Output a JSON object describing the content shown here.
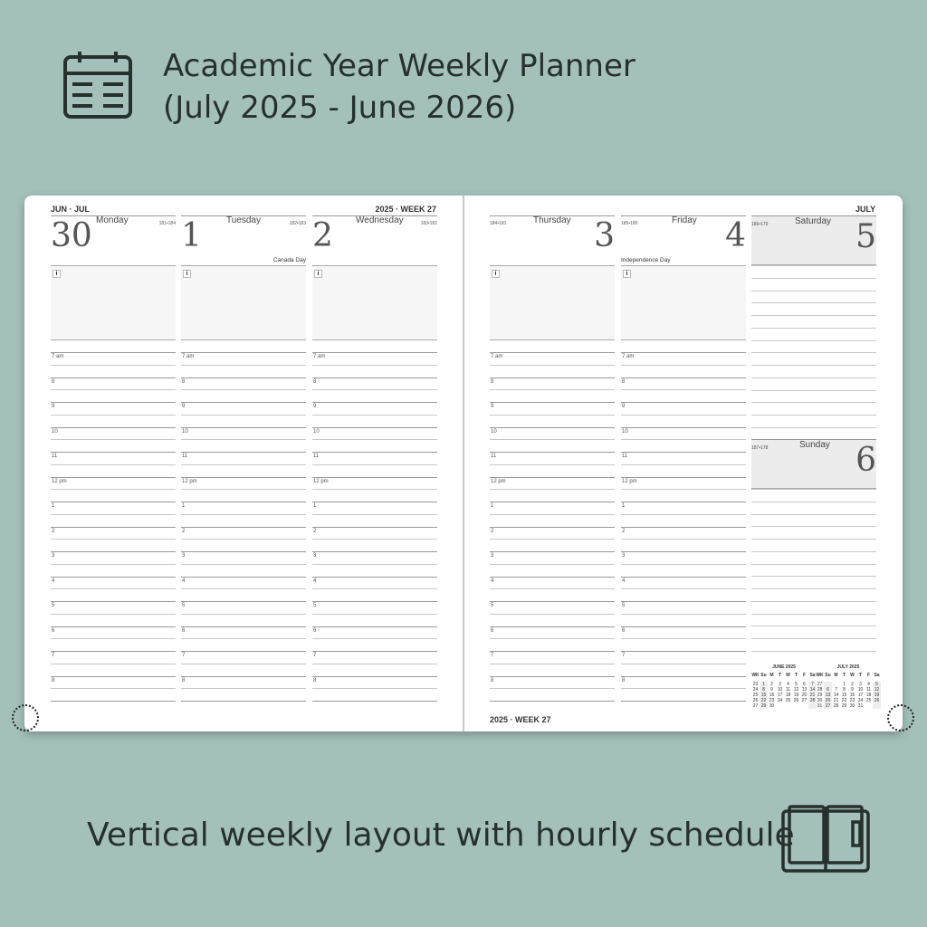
{
  "header": {
    "title_line1": "Academic Year Weekly Planner",
    "title_line2": "(July 2025 - June 2026)",
    "icon": "calendar-icon"
  },
  "footer": {
    "tagline": "Vertical weekly layout with hourly schedule",
    "icon": "open-planner-icon"
  },
  "planner": {
    "left_header": "JUN · JUL",
    "left_week": "2025 · WEEK 27",
    "right_month": "JULY",
    "right_footer": "2025 · WEEK 27",
    "days": [
      {
        "name": "Monday",
        "date": "30",
        "count": "181•184",
        "holiday": ""
      },
      {
        "name": "Tuesday",
        "date": "1",
        "count": "182•183",
        "holiday": "Canada Day"
      },
      {
        "name": "Wednesday",
        "date": "2",
        "count": "183•182",
        "holiday": ""
      },
      {
        "name": "Thursday",
        "date": "3",
        "count": "184•181",
        "holiday": ""
      },
      {
        "name": "Friday",
        "date": "4",
        "count": "185•180",
        "holiday": "Independence Day"
      },
      {
        "name": "Saturday",
        "date": "5",
        "count": "186•179"
      },
      {
        "name": "Sunday",
        "date": "6",
        "count": "187•178"
      }
    ],
    "info_icon": "i",
    "hours": [
      "7 am",
      "8",
      "9",
      "10",
      "11",
      "12 pm",
      "1",
      "2",
      "3",
      "4",
      "5",
      "6",
      "7",
      "8"
    ],
    "mini_calendars": [
      {
        "title": "JUNE 2025",
        "head": [
          "WK",
          "Su",
          "M",
          "T",
          "W",
          "T",
          "F",
          "Sa"
        ],
        "rows": [
          [
            "23",
            "1",
            "2",
            "3",
            "4",
            "5",
            "6",
            "7"
          ],
          [
            "24",
            "8",
            "9",
            "10",
            "11",
            "12",
            "13",
            "14"
          ],
          [
            "25",
            "15",
            "16",
            "17",
            "18",
            "19",
            "20",
            "21"
          ],
          [
            "26",
            "22",
            "23",
            "24",
            "25",
            "26",
            "27",
            "28"
          ],
          [
            "27",
            "29",
            "30",
            "",
            "",
            "",
            "",
            ""
          ]
        ]
      },
      {
        "title": "JULY 2025",
        "head": [
          "WK",
          "Su",
          "M",
          "T",
          "W",
          "T",
          "F",
          "Sa"
        ],
        "rows": [
          [
            "27",
            "",
            "",
            "1",
            "2",
            "3",
            "4",
            "5"
          ],
          [
            "28",
            "6",
            "7",
            "8",
            "9",
            "10",
            "11",
            "12"
          ],
          [
            "29",
            "13",
            "14",
            "15",
            "16",
            "17",
            "18",
            "19"
          ],
          [
            "30",
            "20",
            "21",
            "22",
            "23",
            "24",
            "25",
            "26"
          ],
          [
            "31",
            "27",
            "28",
            "29",
            "30",
            "31",
            "",
            ""
          ]
        ]
      }
    ]
  },
  "colors": {
    "background": "#a4c0bb",
    "text": "#26302d",
    "weekend_fill": "#ececec"
  }
}
